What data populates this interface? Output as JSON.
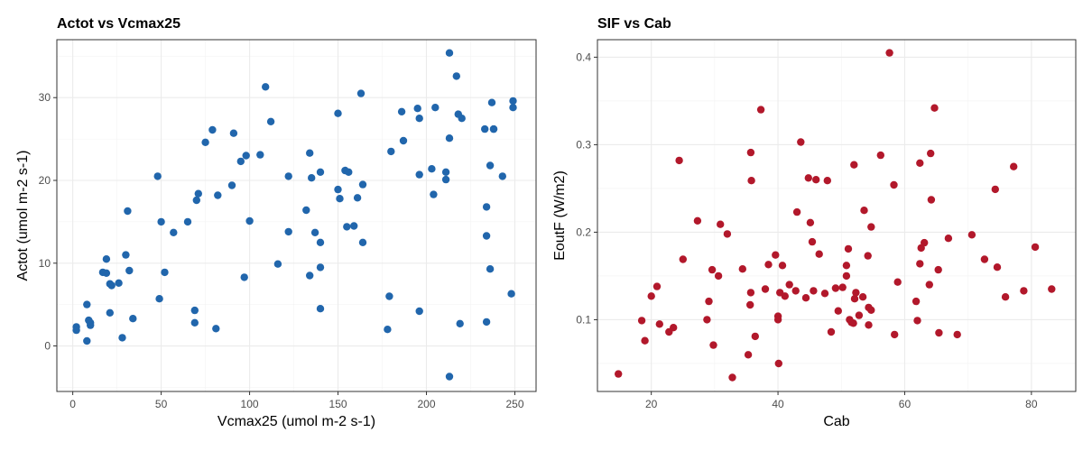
{
  "chart_data": [
    {
      "type": "scatter",
      "title": "Actot vs Vcmax25",
      "xlabel": "Vcmax25 (umol m-2 s-1)",
      "ylabel": "Actot (umol m-2 s-1)",
      "xlim": [
        -9,
        262
      ],
      "ylim": [
        -5.5,
        37
      ],
      "x_ticks": [
        0,
        50,
        100,
        150,
        200,
        250
      ],
      "y_ticks": [
        0,
        10,
        20,
        30
      ],
      "grid": true,
      "color": "#2166ac",
      "points": [
        [
          2,
          2.3
        ],
        [
          2,
          1.9
        ],
        [
          8,
          5.0
        ],
        [
          8,
          0.6
        ],
        [
          9,
          3.1
        ],
        [
          10,
          2.8
        ],
        [
          10,
          2.5
        ],
        [
          17,
          8.9
        ],
        [
          19,
          10.5
        ],
        [
          19,
          8.8
        ],
        [
          21,
          7.5
        ],
        [
          21,
          4.0
        ],
        [
          22,
          7.3
        ],
        [
          26,
          7.6
        ],
        [
          28,
          1.0
        ],
        [
          30,
          11.0
        ],
        [
          31,
          16.3
        ],
        [
          32,
          9.1
        ],
        [
          34,
          3.3
        ],
        [
          48,
          20.5
        ],
        [
          49,
          5.7
        ],
        [
          50,
          15.0
        ],
        [
          52,
          8.9
        ],
        [
          57,
          13.7
        ],
        [
          65,
          15.0
        ],
        [
          69,
          4.3
        ],
        [
          69,
          2.8
        ],
        [
          70,
          17.6
        ],
        [
          71,
          18.4
        ],
        [
          75,
          24.6
        ],
        [
          79,
          26.1
        ],
        [
          81,
          2.1
        ],
        [
          82,
          18.2
        ],
        [
          90,
          19.4
        ],
        [
          91,
          25.7
        ],
        [
          95,
          22.3
        ],
        [
          97,
          8.3
        ],
        [
          98,
          23.0
        ],
        [
          100,
          15.1
        ],
        [
          106,
          23.1
        ],
        [
          109,
          31.3
        ],
        [
          112,
          27.1
        ],
        [
          116,
          9.9
        ],
        [
          122,
          20.5
        ],
        [
          122,
          13.8
        ],
        [
          132,
          16.4
        ],
        [
          134,
          23.3
        ],
        [
          134,
          8.5
        ],
        [
          135,
          20.3
        ],
        [
          137,
          13.7
        ],
        [
          140,
          21.0
        ],
        [
          140,
          12.5
        ],
        [
          140,
          9.5
        ],
        [
          140,
          4.5
        ],
        [
          150,
          28.1
        ],
        [
          150,
          18.9
        ],
        [
          151,
          17.8
        ],
        [
          154,
          21.2
        ],
        [
          155,
          14.4
        ],
        [
          156,
          21.0
        ],
        [
          159,
          14.5
        ],
        [
          161,
          17.9
        ],
        [
          163,
          30.5
        ],
        [
          164,
          19.5
        ],
        [
          164,
          12.5
        ],
        [
          178,
          2.0
        ],
        [
          179,
          6.0
        ],
        [
          180,
          23.5
        ],
        [
          186,
          28.3
        ],
        [
          187,
          24.8
        ],
        [
          195,
          28.7
        ],
        [
          196,
          27.5
        ],
        [
          196,
          20.7
        ],
        [
          196,
          4.2
        ],
        [
          203,
          21.4
        ],
        [
          204,
          18.3
        ],
        [
          205,
          28.8
        ],
        [
          211,
          20.1
        ],
        [
          211,
          21.0
        ],
        [
          213,
          35.4
        ],
        [
          213,
          25.1
        ],
        [
          213,
          -3.7
        ],
        [
          217,
          32.6
        ],
        [
          218,
          28.0
        ],
        [
          219,
          2.7
        ],
        [
          220,
          27.5
        ],
        [
          233,
          26.2
        ],
        [
          234,
          16.8
        ],
        [
          234,
          13.3
        ],
        [
          234,
          2.9
        ],
        [
          236,
          21.8
        ],
        [
          236,
          9.3
        ],
        [
          237,
          29.4
        ],
        [
          238,
          26.2
        ],
        [
          238,
          26.2
        ],
        [
          243,
          20.5
        ],
        [
          248,
          6.3
        ],
        [
          249,
          29.6
        ],
        [
          249,
          28.8
        ]
      ]
    },
    {
      "type": "scatter",
      "title": "SIF vs Cab",
      "xlabel": "Cab",
      "ylabel": "EoutF (W/m2)",
      "xlim": [
        11.5,
        87
      ],
      "ylim": [
        0.018,
        0.42
      ],
      "x_ticks": [
        20,
        40,
        60,
        80
      ],
      "y_ticks": [
        0.1,
        0.2,
        0.3,
        0.4
      ],
      "y_tick_labels": [
        "0.1",
        "0.2",
        "0.3",
        "0.4"
      ],
      "grid": true,
      "color": "#b2182b",
      "points": [
        [
          14.8,
          0.038
        ],
        [
          18.5,
          0.099
        ],
        [
          19.0,
          0.076
        ],
        [
          20.0,
          0.127
        ],
        [
          20.9,
          0.138
        ],
        [
          21.3,
          0.095
        ],
        [
          22.8,
          0.086
        ],
        [
          23.5,
          0.091
        ],
        [
          24.4,
          0.282
        ],
        [
          25.0,
          0.169
        ],
        [
          27.3,
          0.213
        ],
        [
          28.8,
          0.1
        ],
        [
          29.1,
          0.121
        ],
        [
          29.6,
          0.157
        ],
        [
          29.8,
          0.071
        ],
        [
          30.6,
          0.15
        ],
        [
          30.9,
          0.209
        ],
        [
          32.0,
          0.198
        ],
        [
          32.8,
          0.034
        ],
        [
          34.4,
          0.158
        ],
        [
          35.3,
          0.06
        ],
        [
          35.6,
          0.117
        ],
        [
          35.7,
          0.131
        ],
        [
          35.7,
          0.291
        ],
        [
          35.8,
          0.259
        ],
        [
          36.4,
          0.081
        ],
        [
          37.3,
          0.34
        ],
        [
          38.0,
          0.135
        ],
        [
          38.5,
          0.163
        ],
        [
          39.6,
          0.174
        ],
        [
          40.0,
          0.104
        ],
        [
          40.0,
          0.1
        ],
        [
          40.1,
          0.05
        ],
        [
          40.3,
          0.131
        ],
        [
          40.7,
          0.162
        ],
        [
          41.1,
          0.127
        ],
        [
          41.8,
          0.14
        ],
        [
          42.8,
          0.133
        ],
        [
          43.0,
          0.223
        ],
        [
          43.6,
          0.303
        ],
        [
          44.4,
          0.125
        ],
        [
          44.8,
          0.262
        ],
        [
          45.1,
          0.211
        ],
        [
          45.4,
          0.189
        ],
        [
          45.6,
          0.133
        ],
        [
          46.0,
          0.26
        ],
        [
          46.5,
          0.175
        ],
        [
          47.4,
          0.13
        ],
        [
          47.8,
          0.259
        ],
        [
          48.4,
          0.086
        ],
        [
          49.1,
          0.136
        ],
        [
          49.5,
          0.11
        ],
        [
          50.2,
          0.137
        ],
        [
          50.8,
          0.15
        ],
        [
          50.8,
          0.162
        ],
        [
          51.1,
          0.181
        ],
        [
          51.3,
          0.1
        ],
        [
          51.6,
          0.097
        ],
        [
          51.9,
          0.096
        ],
        [
          52.0,
          0.277
        ],
        [
          52.1,
          0.124
        ],
        [
          52.3,
          0.131
        ],
        [
          52.8,
          0.105
        ],
        [
          53.4,
          0.126
        ],
        [
          53.6,
          0.225
        ],
        [
          54.2,
          0.173
        ],
        [
          54.3,
          0.094
        ],
        [
          54.3,
          0.114
        ],
        [
          54.7,
          0.206
        ],
        [
          54.7,
          0.111
        ],
        [
          56.2,
          0.288
        ],
        [
          57.6,
          0.405
        ],
        [
          58.3,
          0.254
        ],
        [
          58.4,
          0.083
        ],
        [
          58.9,
          0.143
        ],
        [
          61.8,
          0.121
        ],
        [
          62.0,
          0.099
        ],
        [
          62.4,
          0.279
        ],
        [
          62.4,
          0.164
        ],
        [
          62.6,
          0.182
        ],
        [
          63.1,
          0.188
        ],
        [
          63.9,
          0.14
        ],
        [
          64.1,
          0.29
        ],
        [
          64.2,
          0.237
        ],
        [
          64.7,
          0.342
        ],
        [
          65.3,
          0.157
        ],
        [
          65.4,
          0.085
        ],
        [
          66.9,
          0.193
        ],
        [
          68.3,
          0.083
        ],
        [
          70.6,
          0.197
        ],
        [
          72.6,
          0.169
        ],
        [
          74.3,
          0.249
        ],
        [
          74.6,
          0.16
        ],
        [
          75.9,
          0.126
        ],
        [
          77.2,
          0.275
        ],
        [
          78.8,
          0.133
        ],
        [
          80.6,
          0.183
        ],
        [
          83.2,
          0.135
        ]
      ]
    }
  ]
}
